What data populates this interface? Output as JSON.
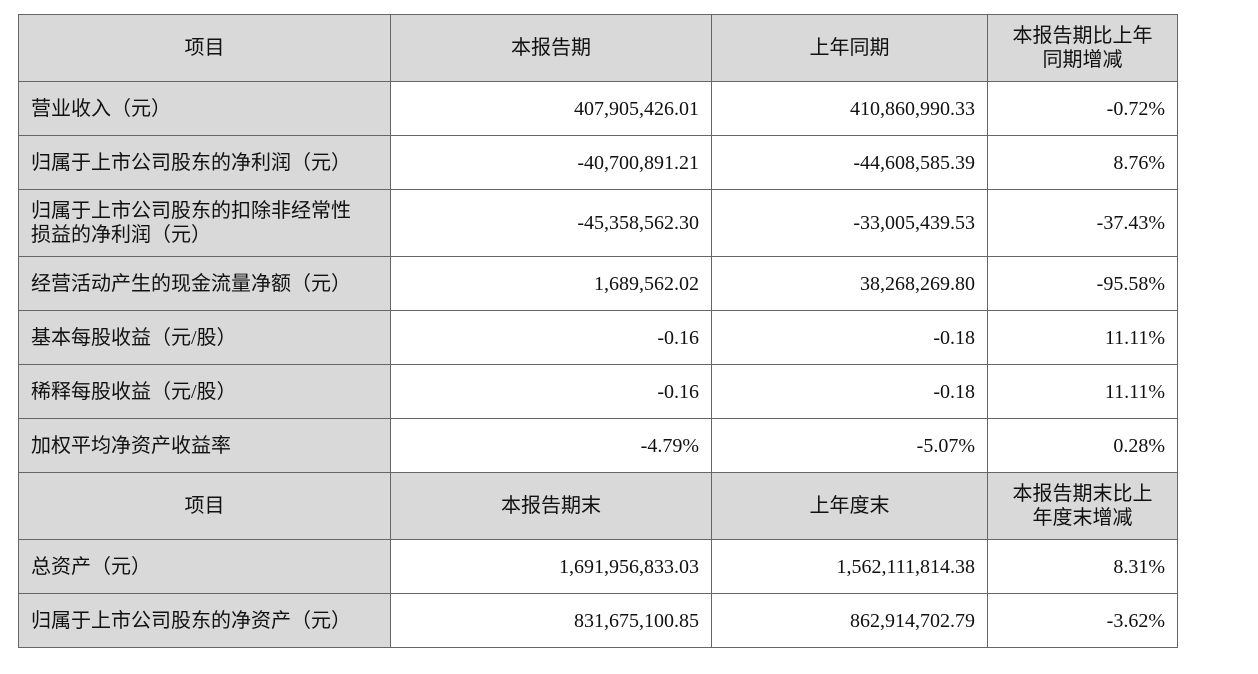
{
  "table": {
    "rows": [
      [
        [
          "项目"
        ],
        [
          "本报告期"
        ],
        [
          "上年同期"
        ],
        [
          "本报告期比上年",
          "同期增减"
        ]
      ],
      [
        "营业收入（元）",
        "407,905,426.01",
        "410,860,990.33",
        "-0.72%"
      ],
      [
        "归属于上市公司股东的净利润（元）",
        "-40,700,891.21",
        "-44,608,585.39",
        "8.76%"
      ],
      [
        [
          "归属于上市公司股东的扣除非经常性",
          "损益的净利润（元）"
        ],
        "-45,358,562.30",
        "-33,005,439.53",
        "-37.43%"
      ],
      [
        "经营活动产生的现金流量净额（元）",
        "1,689,562.02",
        "38,268,269.80",
        "-95.58%"
      ],
      [
        "基本每股收益（元/股）",
        "-0.16",
        "-0.18",
        "11.11%"
      ],
      [
        "稀释每股收益（元/股）",
        "-0.16",
        "-0.18",
        "11.11%"
      ],
      [
        "加权平均净资产收益率",
        "-4.79%",
        "-5.07%",
        "0.28%"
      ],
      [
        [
          "项目"
        ],
        [
          "本报告期末"
        ],
        [
          "上年度末"
        ],
        [
          "本报告期末比上",
          "年度末增减"
        ]
      ],
      [
        "总资产（元）",
        "1,691,956,833.03",
        "1,562,111,814.38",
        "8.31%"
      ],
      [
        "归属于上市公司股东的净资产（元）",
        "831,675,100.85",
        "862,914,702.79",
        "-3.62%"
      ]
    ]
  }
}
